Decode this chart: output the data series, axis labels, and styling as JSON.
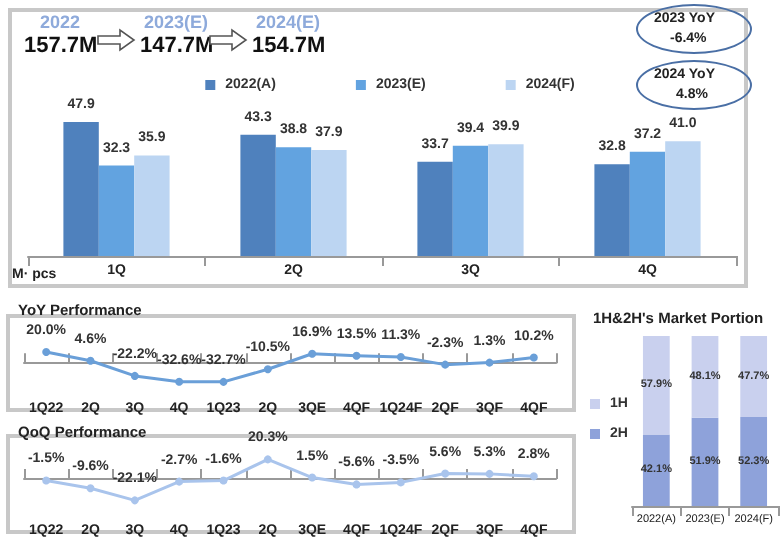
{
  "chart_data": [
    {
      "type": "bar",
      "ylabel": "M· pcs",
      "categories": [
        "1Q",
        "2Q",
        "3Q",
        "4Q"
      ],
      "legend": "top",
      "tick_labels": "x",
      "annotations": [
        "2022",
        "157.7M",
        "2023(E)",
        "147.7M",
        "2024(E)",
        "154.7M",
        "2023 YoY",
        "-6.4%",
        "2024 YoY",
        "4.8%"
      ],
      "series": [
        {
          "name": "2022(A)",
          "color": "#4f81bd",
          "values": [
            47.9,
            43.3,
            33.7,
            32.8
          ],
          "value_labels": [
            "47.9",
            "43.3",
            "33.7",
            "32.8"
          ]
        },
        {
          "name": "2023(E)",
          "color": "#62a3e0",
          "values": [
            32.3,
            38.8,
            39.4,
            37.2
          ],
          "value_labels": [
            "32.3",
            "38.8",
            "39.4",
            "37.2"
          ]
        },
        {
          "name": "2024(F)",
          "color": "#bcd5f2",
          "values": [
            35.9,
            37.9,
            39.9,
            41.0
          ],
          "value_labels": [
            "35.9",
            "37.9",
            "39.9",
            "41.0"
          ]
        }
      ]
    },
    {
      "type": "line",
      "title": "YoY Performance",
      "categories": [
        "1Q22",
        "2Q",
        "3Q",
        "4Q",
        "1Q23",
        "2Q",
        "3QE",
        "4QF",
        "1Q24F",
        "2QF",
        "3QF",
        "4QF"
      ],
      "tick_labels": "x",
      "marker": "circle",
      "series": [
        {
          "color": "#6a9fd8",
          "values": [
            20.0,
            4.6,
            -22.2,
            -32.6,
            -32.7,
            -10.5,
            16.9,
            13.5,
            11.3,
            -2.3,
            1.3,
            10.2
          ],
          "value_labels": [
            "20.0%",
            "4.6%",
            "-22.2%",
            "-32.6%",
            "-32.7%",
            "-10.5%",
            "16.9%",
            "13.5%",
            "11.3%",
            "-2.3%",
            "1.3%",
            "10.2%"
          ]
        }
      ]
    },
    {
      "type": "line",
      "title": "QoQ Performance",
      "categories": [
        "1Q22",
        "2Q",
        "3Q",
        "4Q",
        "1Q23",
        "2Q",
        "3QE",
        "4QF",
        "1Q24F",
        "2QF",
        "3QF",
        "4QF"
      ],
      "tick_labels": "x",
      "marker": "circle",
      "series": [
        {
          "color": "#a9c4ec",
          "values": [
            -1.5,
            -9.6,
            -22.1,
            -2.7,
            -1.6,
            20.3,
            1.5,
            -5.6,
            -3.5,
            5.6,
            5.3,
            2.8
          ],
          "value_labels": [
            "-1.5%",
            "-9.6%",
            "-22.1%",
            "-2.7%",
            "-1.6%",
            "20.3%",
            "1.5%",
            "-5.6%",
            "-3.5%",
            "5.6%",
            "5.3%",
            "2.8%"
          ]
        }
      ]
    },
    {
      "type": "bar",
      "title": "1H&2H's Market Portion",
      "categories": [
        "2022(A)",
        "2023(E)",
        "2024(F)"
      ],
      "stacked": true,
      "legend": "left",
      "tick_labels": "x",
      "series": [
        {
          "name": "2H",
          "color": "#8ea2da",
          "values": [
            42.1,
            51.9,
            52.3
          ],
          "value_labels": [
            "42.1%",
            "51.9%",
            "52.3%"
          ]
        },
        {
          "name": "1H",
          "color": "#c9d0ee",
          "values": [
            57.9,
            48.1,
            47.7
          ],
          "value_labels": [
            "57.9%",
            "48.1%",
            "47.7%"
          ]
        }
      ]
    }
  ]
}
